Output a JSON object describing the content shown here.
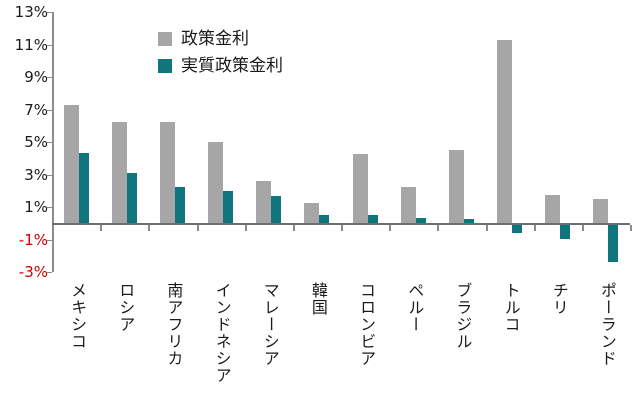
{
  "chart_data": {
    "type": "bar",
    "title": "",
    "categories": [
      "メキシコ",
      "ロシア",
      "南アフリカ",
      "インドネシア",
      "マレーシア",
      "韓国",
      "コロンビア",
      "ペルー",
      "ブラジル",
      "トルコ",
      "チリ",
      "ポーランド"
    ],
    "series": [
      {
        "name": "政策金利",
        "color": "#a6a6a6",
        "values": [
          7.25,
          6.25,
          6.25,
          5.0,
          2.6,
          1.25,
          4.25,
          2.25,
          4.5,
          11.25,
          1.75,
          1.5
        ]
      },
      {
        "name": "実質政策金利",
        "color": "#0e767c",
        "values": [
          4.3,
          3.1,
          2.25,
          2.0,
          1.7,
          0.5,
          0.5,
          0.3,
          0.25,
          -0.5,
          -0.85,
          -2.25
        ]
      }
    ],
    "ylim": [
      -3,
      13
    ],
    "yticks": [
      13,
      11,
      9,
      7,
      5,
      3,
      1,
      -1,
      -3
    ],
    "ytick_suffix": "%",
    "grid": false,
    "legend_position": "top-left-inside",
    "colors": {
      "policy_bar": "#a6a6a6",
      "real_bar": "#0e767c",
      "axis": "#8c8c8c",
      "positive_tick_text": "#1a1a1a",
      "negative_tick_text": "#cc0000"
    }
  }
}
